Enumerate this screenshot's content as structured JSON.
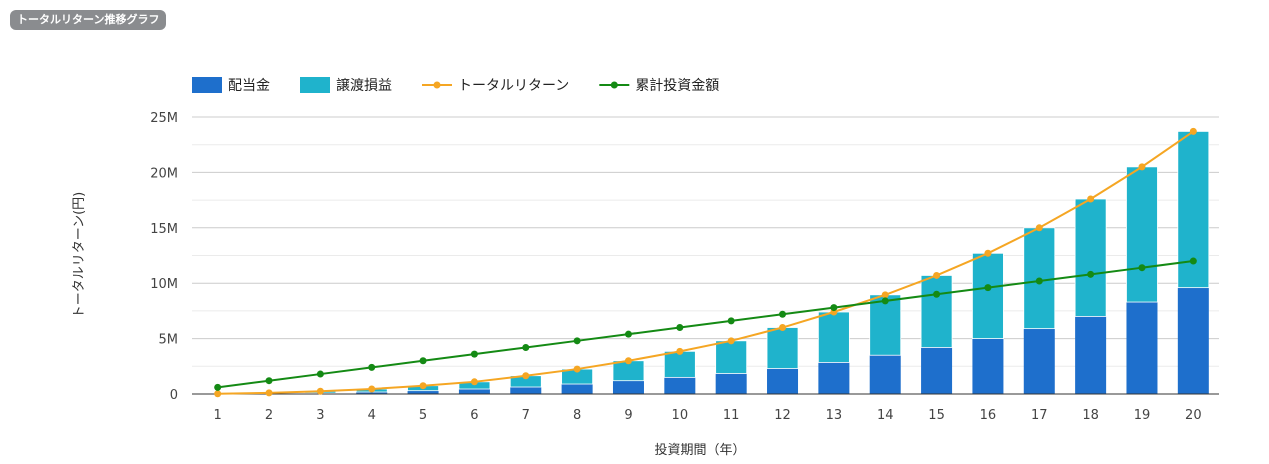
{
  "badge": "トータルリターン推移グラフ",
  "chart_data": {
    "type": "bar",
    "stacked": true,
    "xlabel": "投資期間（年）",
    "ylabel": "トータルリターン(円)",
    "ylim": [
      0,
      25000000
    ],
    "yticks": [
      0,
      5000000,
      10000000,
      15000000,
      20000000,
      25000000
    ],
    "ytick_labels": [
      "0",
      "5M",
      "10M",
      "15M",
      "20M",
      "25M"
    ],
    "grid": true,
    "legend_position": "top-left",
    "categories": [
      "1",
      "2",
      "3",
      "4",
      "5",
      "6",
      "7",
      "8",
      "9",
      "10",
      "11",
      "12",
      "13",
      "14",
      "15",
      "16",
      "17",
      "18",
      "19",
      "20"
    ],
    "series": [
      {
        "name": "配当金",
        "kind": "bar",
        "color": "#1e6fcc",
        "values": [
          10000,
          30000,
          80000,
          180000,
          300000,
          450000,
          630000,
          900000,
          1200000,
          1500000,
          1850000,
          2300000,
          2850000,
          3500000,
          4200000,
          5000000,
          5900000,
          7000000,
          8300000,
          9600000
        ]
      },
      {
        "name": "譲渡損益",
        "kind": "bar",
        "color": "#1fb3cc",
        "values": [
          10000,
          70000,
          170000,
          270000,
          450000,
          650000,
          1020000,
          1350000,
          1800000,
          2350000,
          2950000,
          3700000,
          4550000,
          5450000,
          6500000,
          7700000,
          9100000,
          10600000,
          12200000,
          14100000
        ]
      },
      {
        "name": "トータルリターン",
        "kind": "line",
        "color": "#f5a623",
        "values": [
          20000,
          100000,
          250000,
          450000,
          750000,
          1100000,
          1650000,
          2250000,
          3000000,
          3850000,
          4800000,
          6000000,
          7400000,
          8950000,
          10700000,
          12700000,
          15000000,
          17600000,
          20500000,
          23700000
        ]
      },
      {
        "name": "累計投資金額",
        "kind": "line",
        "color": "#148a14",
        "values": [
          600000,
          1200000,
          1800000,
          2400000,
          3000000,
          3600000,
          4200000,
          4800000,
          5400000,
          6000000,
          6600000,
          7200000,
          7800000,
          8400000,
          9000000,
          9600000,
          10200000,
          10800000,
          11400000,
          12000000
        ]
      }
    ]
  }
}
